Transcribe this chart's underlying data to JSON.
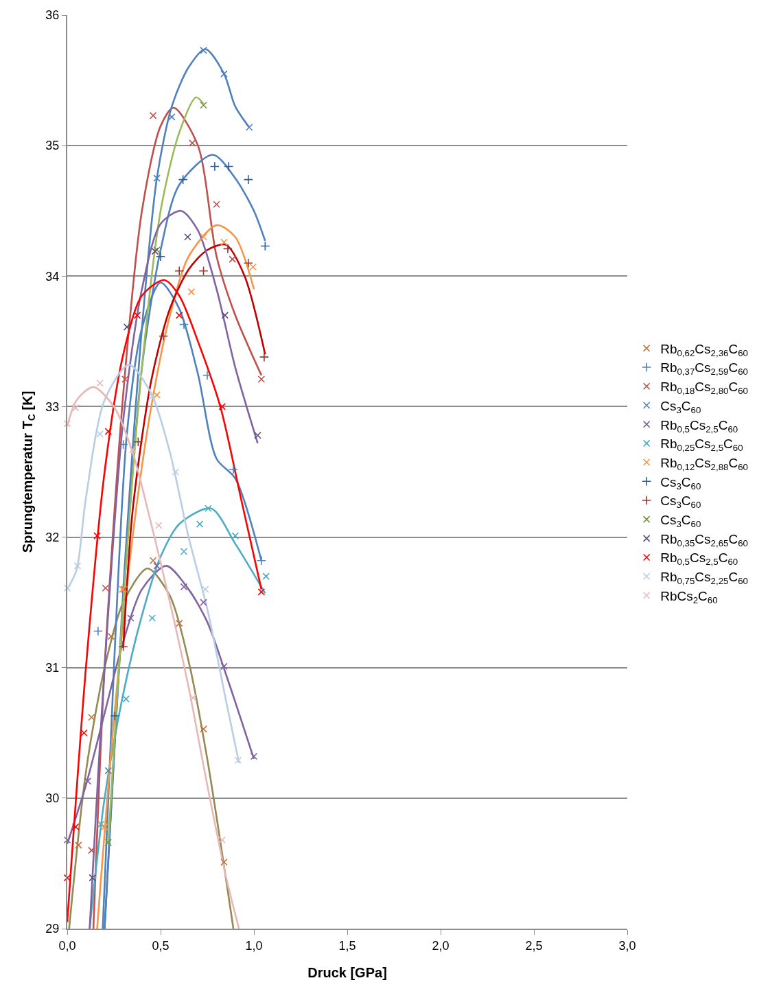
{
  "chart_data": {
    "type": "scatter",
    "xlabel": "Druck [GPa]",
    "ylabel": "Sprungtemperatur T$_{C}$ [K]",
    "xlim": [
      0,
      3
    ],
    "ylim": [
      29,
      36
    ],
    "xticks": [
      {
        "value": 0,
        "label": "0,0"
      },
      {
        "value": 0.5,
        "label": "0,5"
      },
      {
        "value": 1,
        "label": "1,0"
      },
      {
        "value": 1.5,
        "label": "1,5"
      },
      {
        "value": 2,
        "label": "2,0"
      },
      {
        "value": 2.5,
        "label": "2,5"
      },
      {
        "value": 3,
        "label": "3,0"
      }
    ],
    "yticks": [
      29,
      30,
      31,
      32,
      33,
      34,
      35,
      36
    ],
    "grid": "y",
    "legend": "right",
    "series": [
      {
        "name": "Rb$_{0,62}$Cs$_{2,36}$C$_{60}$",
        "color": "#c0703a",
        "marker": "cross",
        "x": [
          0.06,
          0.13,
          0.235,
          0.305,
          0.46,
          0.6,
          0.73,
          0.84
        ],
        "values": [
          29.64,
          30.62,
          31.24,
          31.6,
          31.82,
          31.34,
          30.53,
          29.51
        ]
      },
      {
        "name": "Rb$_{0,37}$Cs$_{2,59}$C$_{60}$",
        "color": "#4f81bd",
        "marker": "plus",
        "x": [
          0.165,
          0.3,
          0.625,
          0.75,
          0.89,
          1.04
        ],
        "values": [
          31.28,
          32.71,
          33.63,
          33.24,
          32.52,
          31.82
        ]
      },
      {
        "name": "Rb$_{0,18}$Cs$_{2,80}$C$_{60}$",
        "color": "#c0504d",
        "marker": "cross",
        "x": [
          0.13,
          0.205,
          0.31,
          0.46,
          0.67,
          0.8,
          0.885,
          1.04
        ],
        "values": [
          29.6,
          31.61,
          33.21,
          35.23,
          35.02,
          34.55,
          34.13,
          33.21
        ]
      },
      {
        "name": "Cs$_{3}$C$_{60}$",
        "color": "#4f81bd",
        "marker": "cross",
        "x": [
          0.22,
          0.48,
          0.56,
          0.73,
          0.84,
          0.975
        ],
        "values": [
          30.21,
          34.75,
          35.22,
          35.73,
          35.55,
          35.14
        ]
      },
      {
        "name": "Rb$_{0,5}$Cs$_{2,5}$C$_{60}$",
        "color": "#8064a2",
        "marker": "cross",
        "x": [
          0,
          0.11,
          0.34,
          0.48,
          0.625,
          0.73,
          0.84,
          1.0
        ],
        "values": [
          29.68,
          30.13,
          31.38,
          31.78,
          31.62,
          31.5,
          31.01,
          30.32
        ]
      },
      {
        "name": "Rb$_{0,25}$Cs$_{2,5}$C$_{60}$",
        "color": "#4bacc6",
        "marker": "cross",
        "x": [
          0.18,
          0.315,
          0.455,
          0.625,
          0.71,
          0.755,
          0.9,
          1.065
        ],
        "values": [
          29.8,
          30.76,
          31.38,
          31.89,
          32.1,
          32.22,
          32.01,
          31.7
        ]
      },
      {
        "name": "Rb$_{0,12}$Cs$_{2,88}$C$_{60}$",
        "color": "#f79646",
        "marker": "cross",
        "x": [
          0.2,
          0.295,
          0.48,
          0.665,
          0.73,
          0.84,
          0.995
        ],
        "values": [
          29.78,
          31.6,
          33.09,
          33.88,
          34.3,
          34.26,
          34.07
        ]
      },
      {
        "name": "Cs$_{3}$C$_{60}$",
        "color": "#2f5f98",
        "marker": "plus",
        "x": [
          0.255,
          0.5,
          0.62,
          0.79,
          0.865,
          0.97,
          1.06
        ],
        "values": [
          30.63,
          34.15,
          34.74,
          34.84,
          34.84,
          34.74,
          34.23
        ]
      },
      {
        "name": "Cs$_{3}$C$_{60}$",
        "color": "#953735",
        "marker": "plus",
        "x": [
          0.3,
          0.38,
          0.515,
          0.6,
          0.73,
          0.86,
          0.97,
          1.055
        ],
        "values": [
          31.16,
          32.73,
          33.54,
          34.04,
          34.04,
          34.21,
          34.1,
          33.38
        ]
      },
      {
        "name": "Cs$_{3}$C$_{60}$",
        "color": "#77933c",
        "marker": "cross",
        "x": [
          0.22,
          0.48,
          0.73
        ],
        "values": [
          29.66,
          34.2,
          35.31
        ]
      },
      {
        "name": "Rb$_{0,35}$Cs$_{2,65}$C$_{60}$",
        "color": "#5f497a",
        "marker": "cross",
        "x": [
          0.135,
          0.32,
          0.47,
          0.645,
          0.845,
          1.02
        ],
        "values": [
          29.39,
          33.61,
          34.19,
          34.3,
          33.7,
          32.78
        ]
      },
      {
        "name": "Rb$_{0,5}$Cs$_{2,5}$C$_{60}$",
        "color": "#ff0000",
        "marker": "cross",
        "x": [
          0,
          0.045,
          0.09,
          0.16,
          0.22,
          0.375,
          0.6,
          0.83,
          1.04
        ],
        "values": [
          29.39,
          29.78,
          30.5,
          32.01,
          32.81,
          33.7,
          33.7,
          33.0,
          31.58
        ]
      },
      {
        "name": "Rb$_{0,75}$Cs$_{2,25}$C$_{60}$",
        "color": "#b9cde5",
        "marker": "cross",
        "x": [
          0,
          0.055,
          0.175,
          0.455,
          0.58,
          0.74,
          0.915
        ],
        "values": [
          31.61,
          31.78,
          32.79,
          33.08,
          32.5,
          31.6,
          30.29
        ]
      },
      {
        "name": "RbCs$_{2}$C$_{60}$",
        "color": "#e6b9b8",
        "marker": "cross",
        "x": [
          0,
          0.045,
          0.175,
          0.35,
          0.49,
          0.675,
          0.83
        ],
        "values": [
          32.87,
          32.99,
          33.18,
          32.67,
          32.09,
          30.77,
          29.68
        ]
      },
      {
        "type": "line",
        "color": "#948a54",
        "marker": "none",
        "x": [
          0.01,
          0.1,
          0.2,
          0.3,
          0.43,
          0.55,
          0.65,
          0.75,
          0.89
        ],
        "values": [
          29.0,
          30.2,
          31.0,
          31.5,
          31.76,
          31.55,
          31.05,
          30.3,
          29.0
        ]
      },
      {
        "type": "line",
        "color": "#4f81bd",
        "marker": "none",
        "x": [
          0.19,
          0.25,
          0.32,
          0.4,
          0.5,
          0.6,
          0.7,
          0.8,
          0.9,
          1.04
        ],
        "values": [
          29.0,
          31.0,
          32.8,
          33.6,
          33.95,
          33.75,
          33.25,
          32.6,
          32.45,
          31.82
        ]
      },
      {
        "type": "line",
        "color": "#c0504d",
        "marker": "none",
        "x": [
          0.14,
          0.2,
          0.3,
          0.4,
          0.5,
          0.57,
          0.7,
          0.8,
          0.9,
          1.04
        ],
        "values": [
          29.0,
          31.0,
          33.1,
          34.5,
          35.15,
          35.29,
          35.0,
          34.15,
          33.7,
          33.24
        ]
      },
      {
        "type": "line",
        "color": "#4f81bd",
        "marker": "none",
        "x": [
          0.2,
          0.3,
          0.4,
          0.48,
          0.56,
          0.65,
          0.74,
          0.84,
          0.9,
          0.975
        ],
        "values": [
          29.0,
          31.6,
          33.6,
          34.75,
          35.3,
          35.6,
          35.74,
          35.55,
          35.3,
          35.14
        ]
      },
      {
        "type": "line",
        "color": "#8064a2",
        "marker": "none",
        "x": [
          0,
          0.1,
          0.2,
          0.3,
          0.4,
          0.53,
          0.65,
          0.75,
          0.85,
          1.0
        ],
        "values": [
          29.65,
          30.1,
          30.65,
          31.2,
          31.6,
          31.78,
          31.6,
          31.35,
          30.95,
          30.3
        ]
      },
      {
        "type": "line",
        "color": "#4bacc6",
        "marker": "none",
        "x": [
          0.12,
          0.2,
          0.3,
          0.4,
          0.5,
          0.6,
          0.77,
          0.9,
          1.06
        ],
        "values": [
          29.0,
          30.0,
          30.8,
          31.4,
          31.85,
          32.1,
          32.22,
          31.95,
          31.57
        ]
      },
      {
        "type": "line",
        "color": "#f79646",
        "marker": "none",
        "x": [
          0.16,
          0.25,
          0.35,
          0.45,
          0.55,
          0.65,
          0.8,
          0.9,
          1.0
        ],
        "values": [
          29.0,
          30.6,
          32.0,
          33.0,
          33.7,
          34.15,
          34.39,
          34.3,
          33.9
        ]
      },
      {
        "type": "line",
        "color": "#4f81bd",
        "marker": "none",
        "x": [
          0.2,
          0.3,
          0.4,
          0.5,
          0.6,
          0.78,
          0.9,
          1.0,
          1.06
        ],
        "values": [
          29.0,
          31.5,
          33.3,
          34.2,
          34.7,
          34.93,
          34.75,
          34.5,
          34.27
        ]
      },
      {
        "type": "line",
        "color": "#c00000",
        "marker": "none",
        "x": [
          0.3,
          0.35,
          0.45,
          0.55,
          0.65,
          0.75,
          0.85,
          0.95,
          1.06
        ],
        "values": [
          31.15,
          32.2,
          33.2,
          33.75,
          34.05,
          34.2,
          34.24,
          34.0,
          33.4
        ]
      },
      {
        "type": "line",
        "color": "#9bbb59",
        "marker": "none",
        "x": [
          0.22,
          0.3,
          0.4,
          0.5,
          0.6,
          0.69,
          0.73
        ],
        "values": [
          29.66,
          31.5,
          33.3,
          34.5,
          35.1,
          35.37,
          35.32
        ]
      },
      {
        "type": "line",
        "color": "#8064a2",
        "marker": "none",
        "x": [
          0.12,
          0.2,
          0.3,
          0.4,
          0.5,
          0.61,
          0.7,
          0.8,
          0.9,
          1.02
        ],
        "values": [
          29.0,
          31.0,
          32.9,
          33.9,
          34.4,
          34.5,
          34.35,
          33.9,
          33.3,
          32.72
        ]
      },
      {
        "type": "line",
        "color": "#ff0000",
        "marker": "none",
        "x": [
          0,
          0.1,
          0.2,
          0.3,
          0.4,
          0.52,
          0.6,
          0.7,
          0.82,
          0.93,
          1.04
        ],
        "values": [
          29.05,
          31.0,
          32.5,
          33.4,
          33.85,
          33.97,
          33.85,
          33.5,
          33.0,
          32.3,
          31.6
        ]
      },
      {
        "type": "line",
        "color": "#b9cde5",
        "marker": "none",
        "x": [
          0,
          0.05,
          0.1,
          0.2,
          0.33,
          0.45,
          0.55,
          0.65,
          0.75,
          0.85,
          0.92
        ],
        "values": [
          31.6,
          31.75,
          32.3,
          33.05,
          33.32,
          33.1,
          32.65,
          32.0,
          31.45,
          30.75,
          30.27
        ]
      },
      {
        "type": "line",
        "color": "#e6b9b8",
        "marker": "none",
        "x": [
          0,
          0.05,
          0.14,
          0.25,
          0.35,
          0.45,
          0.55,
          0.65,
          0.75,
          0.85,
          0.92
        ],
        "values": [
          32.85,
          33.05,
          33.15,
          33.0,
          32.65,
          32.1,
          31.5,
          30.85,
          30.1,
          29.4,
          29.0
        ]
      }
    ]
  }
}
